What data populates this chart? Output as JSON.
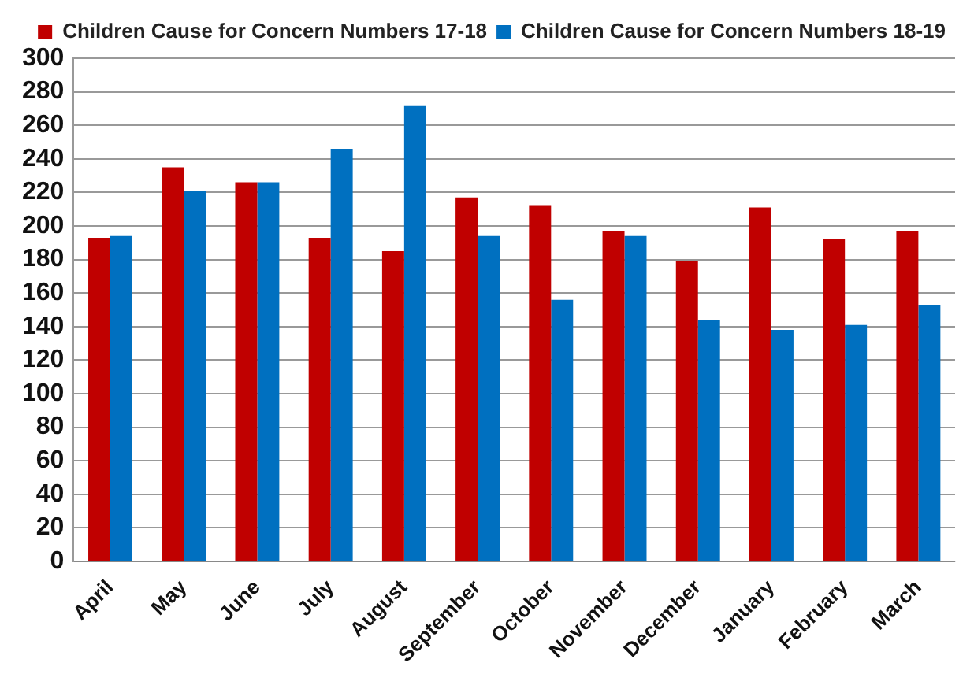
{
  "chart_data": {
    "type": "bar",
    "categories": [
      "April",
      "May",
      "June",
      "July",
      "August",
      "September",
      "October",
      "November",
      "December",
      "January",
      "February",
      "March"
    ],
    "series": [
      {
        "name": "Children Cause for Concern Numbers 17-18",
        "color": "#c00000",
        "values": [
          193,
          235,
          226,
          193,
          185,
          217,
          212,
          197,
          179,
          211,
          192,
          197
        ]
      },
      {
        "name": "Children Cause for Concern Numbers 18-19",
        "color": "#0070c0",
        "values": [
          194,
          221,
          226,
          246,
          272,
          194,
          156,
          194,
          144,
          138,
          141,
          153
        ]
      }
    ],
    "ylim": [
      0,
      300
    ],
    "yticks": [
      0,
      20,
      40,
      60,
      80,
      100,
      120,
      140,
      160,
      180,
      200,
      220,
      240,
      260,
      280,
      300
    ],
    "grid": "y",
    "legend": "top right"
  }
}
